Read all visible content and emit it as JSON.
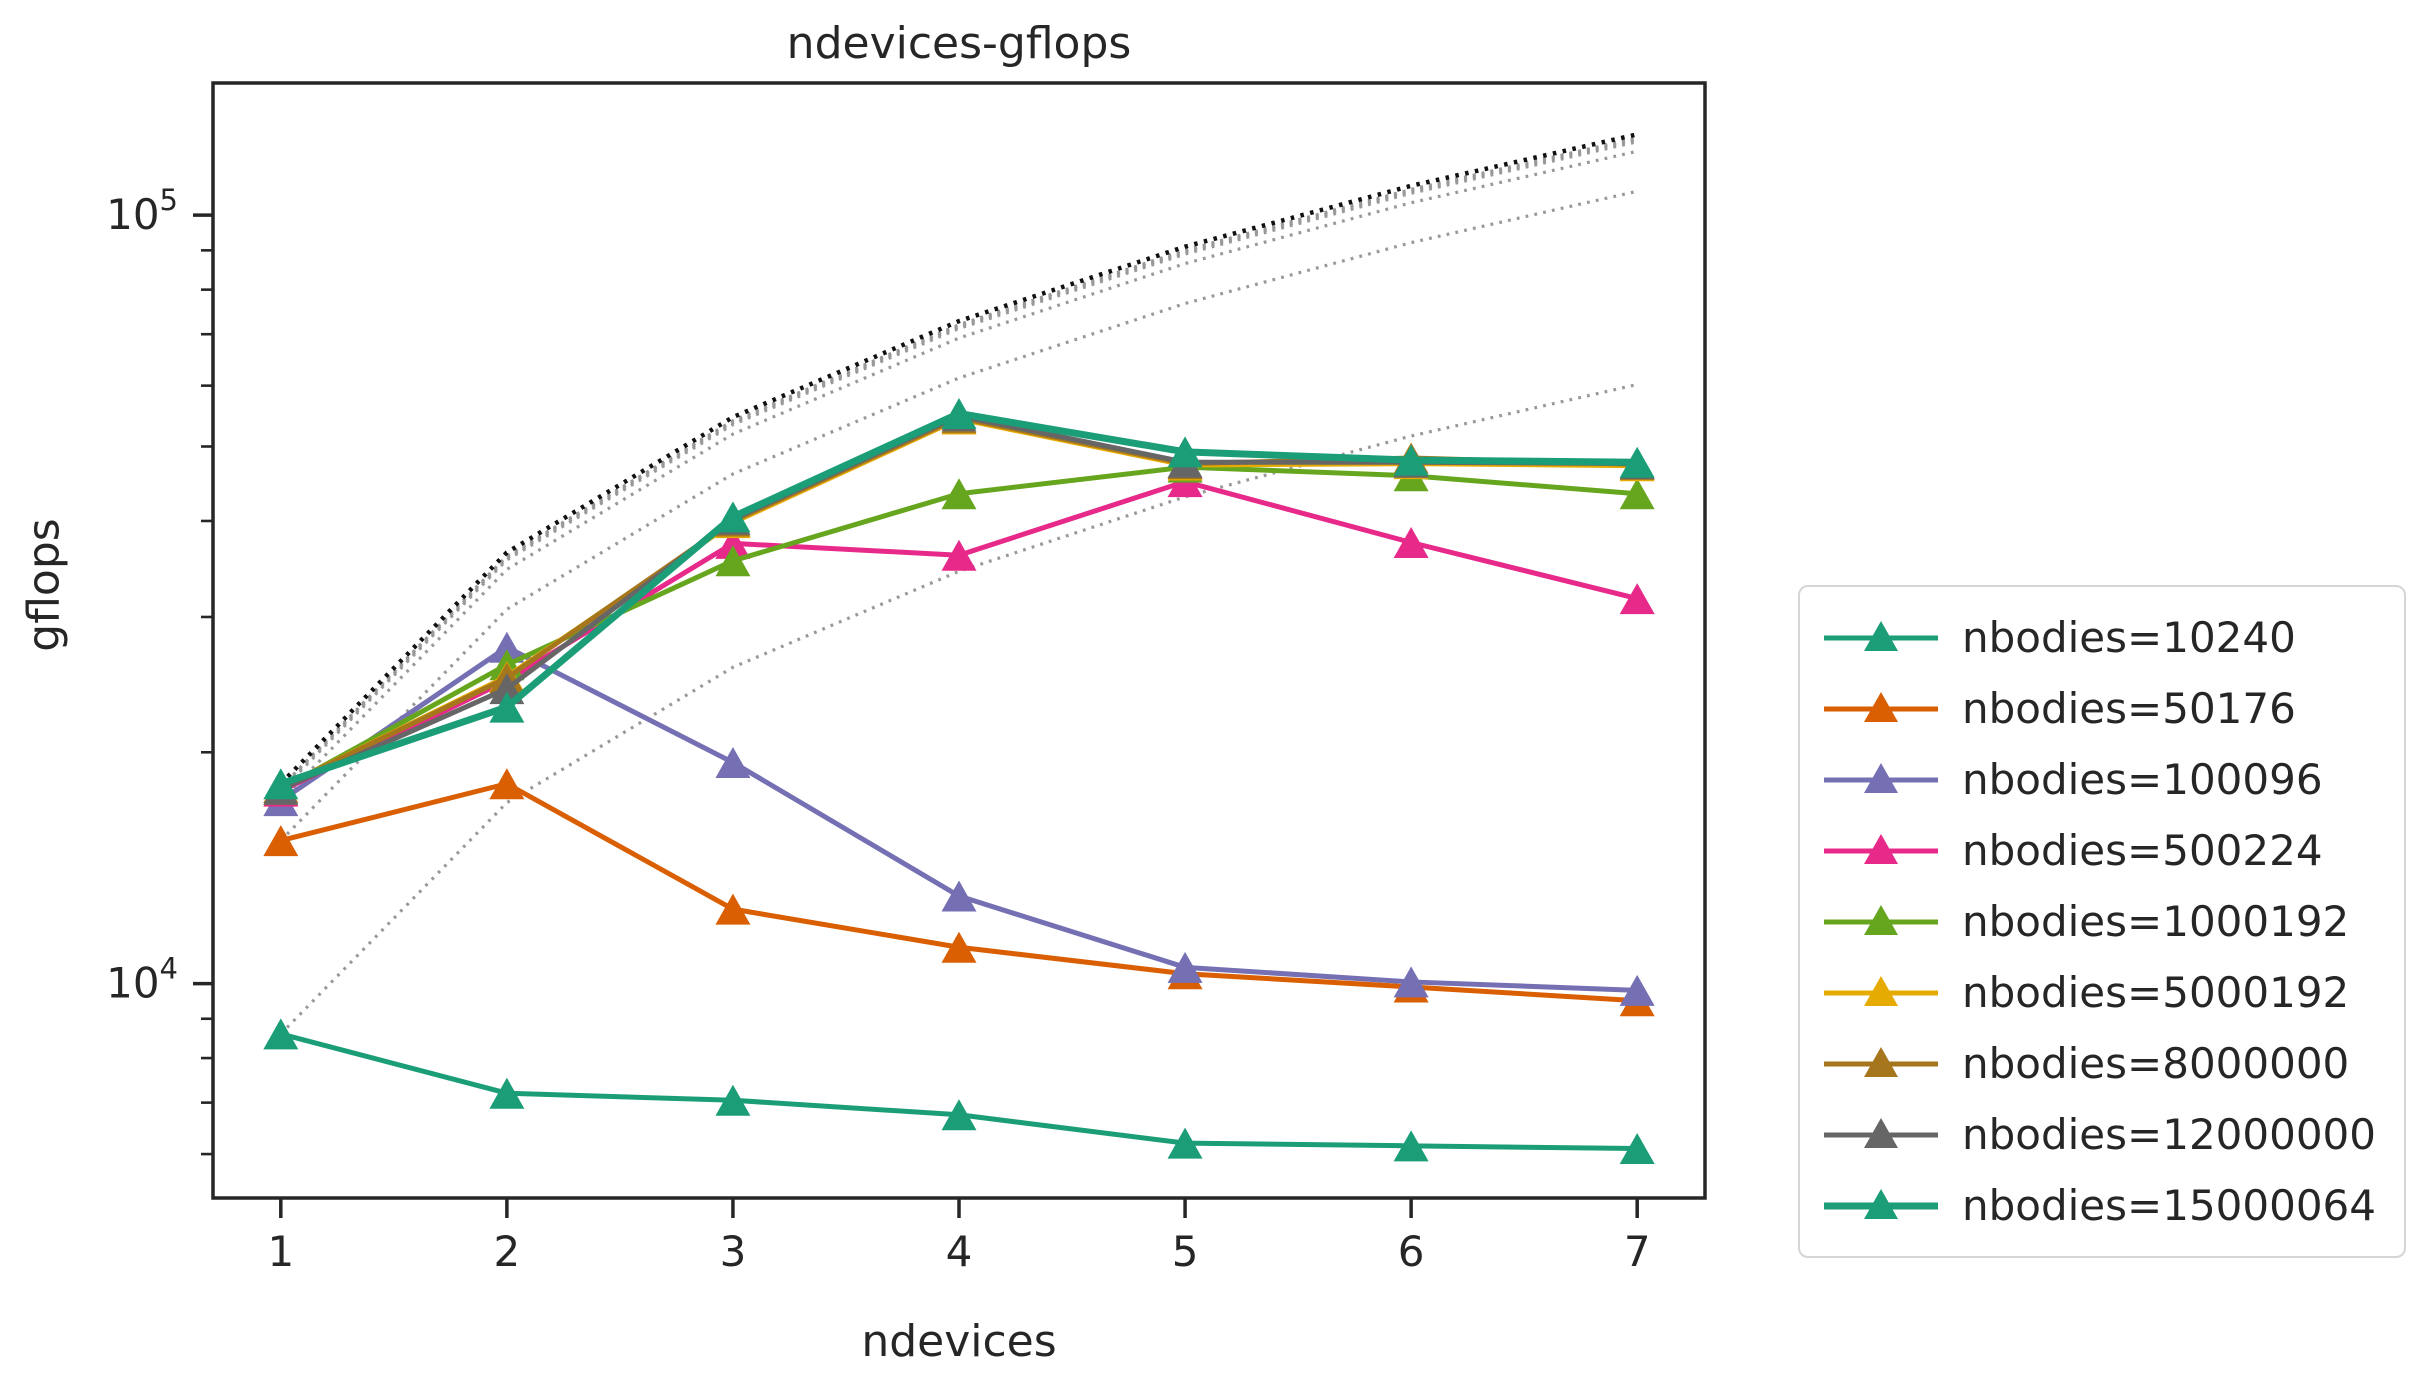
{
  "figure": {
    "title": "ndevices-gflops",
    "xlabel": "ndevices",
    "ylabel": "gflops",
    "background_color": "#ffffff",
    "axes_color": "#262626",
    "ideal_line_color": "#999999",
    "ideal_line_emphasis_color": "#111111"
  },
  "legend": {
    "position": "center right, outside plot",
    "border_color": "#d5d5d5"
  },
  "chart_data": {
    "type": "line",
    "title": "ndevices-gflops",
    "xlabel": "ndevices",
    "ylabel": "gflops",
    "x": [
      1,
      2,
      3,
      4,
      5,
      6,
      7
    ],
    "x_tick_labels": [
      "1",
      "2",
      "3",
      "4",
      "5",
      "6",
      "7"
    ],
    "xlim": [
      0.7,
      7.3
    ],
    "y_scale": "log",
    "ylim": [
      5260,
      148600
    ],
    "y_major_ticks": [
      {
        "value": 10000,
        "label_base": "10",
        "label_exp": "4"
      },
      {
        "value": 100000,
        "label_base": "10",
        "label_exp": "5"
      }
    ],
    "grid": false,
    "marker": "triangle-up",
    "legend_position": "right",
    "annotations": "dotted lines show ideal linear scaling (first value times ndevices); gray for each series, black for nbodies=15000064",
    "series": [
      {
        "name": "nbodies=10240",
        "color": "#1b9e77",
        "values": [
          8600,
          7200,
          7050,
          6750,
          6200,
          6150,
          6100
        ]
      },
      {
        "name": "nbodies=50176",
        "color": "#d95f02",
        "values": [
          15350,
          18200,
          12500,
          11150,
          10300,
          9900,
          9500
        ]
      },
      {
        "name": "nbodies=100096",
        "color": "#7570b3",
        "values": [
          17300,
          27400,
          19400,
          13000,
          10500,
          10050,
          9800
        ]
      },
      {
        "name": "nbodies=500224",
        "color": "#e7298a",
        "values": [
          17800,
          24800,
          37400,
          36100,
          45000,
          37500,
          31700
        ]
      },
      {
        "name": "nbodies=1000192",
        "color": "#66a61e",
        "values": [
          17900,
          26000,
          35500,
          43400,
          47000,
          45800,
          43400
        ]
      },
      {
        "name": "nbodies=5000192",
        "color": "#e6ab02",
        "values": [
          18000,
          25100,
          39800,
          54300,
          47300,
          47500,
          47200
        ]
      },
      {
        "name": "nbodies=8000000",
        "color": "#a6761d",
        "values": [
          18000,
          25000,
          40000,
          54500,
          47500,
          48300,
          47400
        ]
      },
      {
        "name": "nbodies=12000000",
        "color": "#666666",
        "values": [
          17900,
          24200,
          40200,
          54800,
          47700,
          47700,
          47500
        ]
      },
      {
        "name": "nbodies=15000064",
        "color": "#1b9e77",
        "values": [
          18200,
          22900,
          40500,
          55200,
          49200,
          48000,
          47700
        ]
      }
    ]
  }
}
